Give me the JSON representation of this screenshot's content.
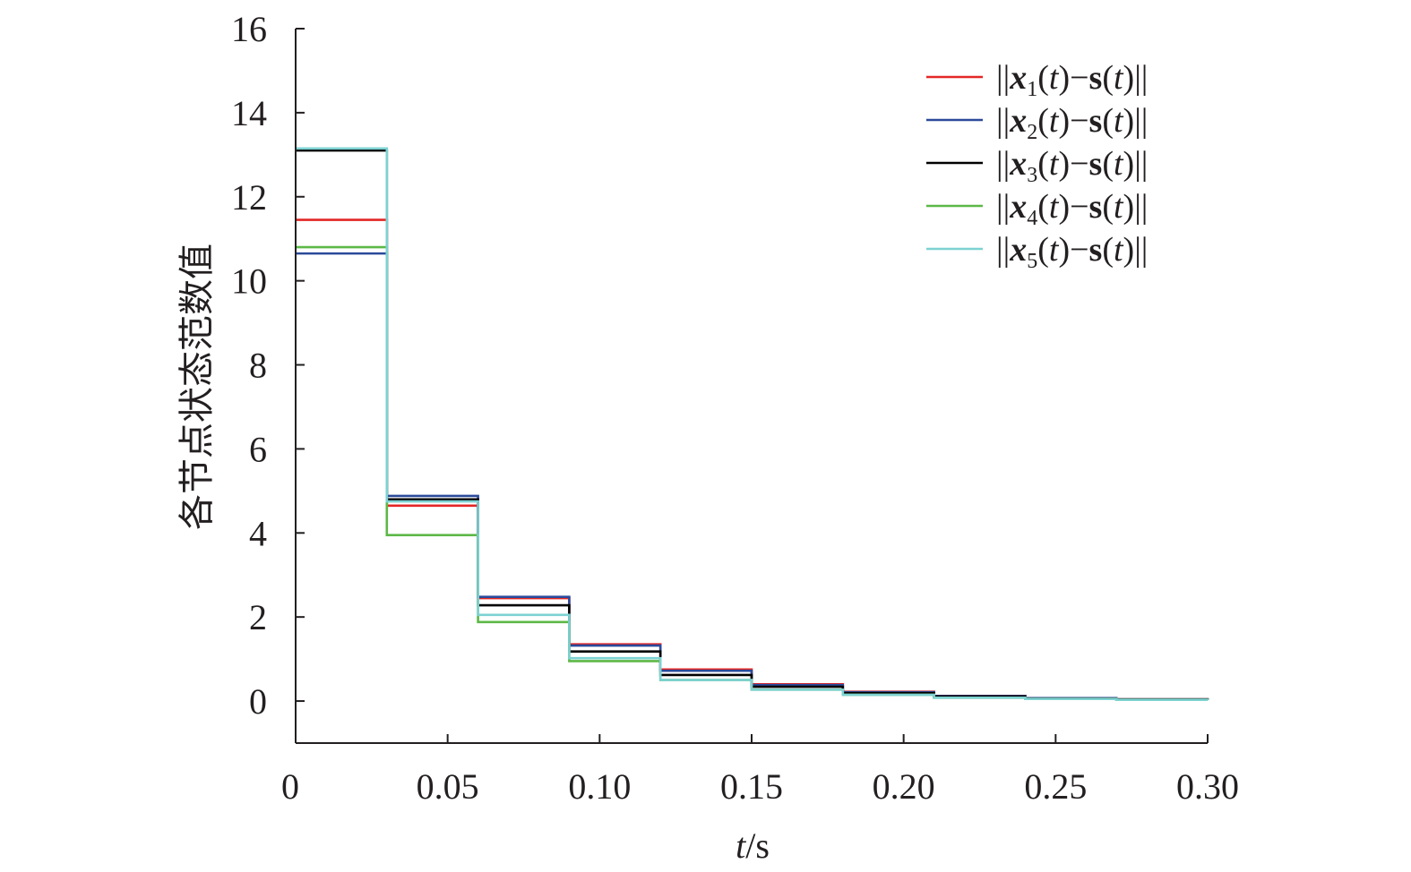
{
  "chart_data": {
    "type": "line",
    "step": true,
    "xlabel_italic": "t",
    "xlabel_unit": "/s",
    "ylabel": "各节点状态范数值",
    "xlim": [
      0,
      0.3
    ],
    "ylim": [
      -1,
      16
    ],
    "x_ticks": [
      0,
      0.05,
      0.1,
      0.15,
      0.2,
      0.25,
      0.3
    ],
    "x_tick_labels": [
      "0",
      "0.05",
      "0.10",
      "0.15",
      "0.20",
      "0.25",
      "0.30"
    ],
    "y_ticks": [
      0,
      2,
      4,
      6,
      8,
      10,
      12,
      14,
      16
    ],
    "y_tick_labels": [
      "0",
      "2",
      "4",
      "6",
      "8",
      "10",
      "12",
      "14",
      "16"
    ],
    "grid": false,
    "legend_position": "top-right",
    "x": [
      0,
      0.03,
      0.06,
      0.09,
      0.12,
      0.15,
      0.18,
      0.21,
      0.24,
      0.27,
      0.3
    ],
    "series": [
      {
        "name": "||x1(t)−s(t)||",
        "sub": "1",
        "color": "#e32726",
        "values": [
          11.45,
          4.65,
          2.45,
          1.35,
          0.75,
          0.4,
          0.22,
          0.12,
          0.07,
          0.04,
          0.03
        ]
      },
      {
        "name": "||x2(t)−s(t)||",
        "sub": "2",
        "color": "#2b4a9a",
        "values": [
          10.65,
          4.88,
          2.48,
          1.32,
          0.72,
          0.38,
          0.21,
          0.12,
          0.07,
          0.04,
          0.03
        ]
      },
      {
        "name": "||x3(t)−s(t)||",
        "sub": "3",
        "color": "#000000",
        "values": [
          13.1,
          4.8,
          2.28,
          1.18,
          0.62,
          0.34,
          0.19,
          0.11,
          0.06,
          0.04,
          0.03
        ]
      },
      {
        "name": "||x4(t)−s(t)||",
        "sub": "4",
        "color": "#5db847",
        "values": [
          10.8,
          3.95,
          1.88,
          0.95,
          0.5,
          0.27,
          0.15,
          0.08,
          0.05,
          0.03,
          0.02
        ]
      },
      {
        "name": "||x5(t)−s(t)||",
        "sub": "5",
        "color": "#7dd2d2",
        "values": [
          13.15,
          4.75,
          2.05,
          1.02,
          0.5,
          0.27,
          0.15,
          0.08,
          0.05,
          0.03,
          0.02
        ]
      }
    ]
  }
}
